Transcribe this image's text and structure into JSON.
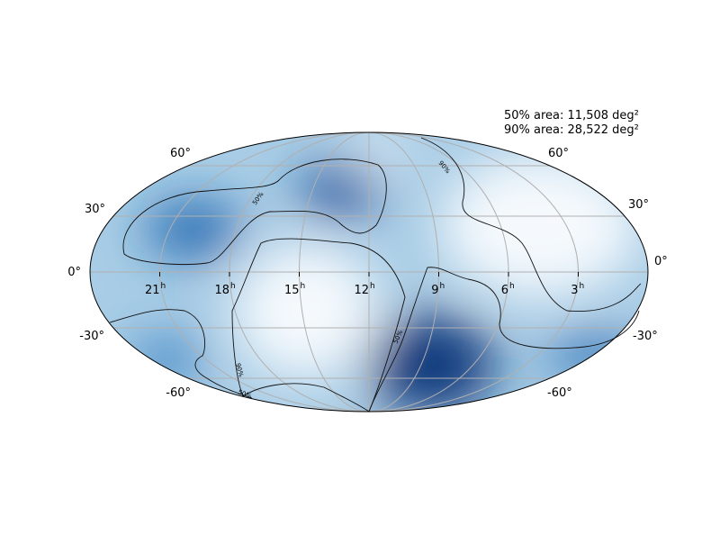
{
  "annotations": [
    "50% area: 11,508 deg²",
    "90% area: 28,522 deg²"
  ],
  "lat_labels_left": [
    "60°",
    "30°",
    "0°",
    "-30°",
    "-60°"
  ],
  "lat_labels_right": [
    "60°",
    "30°",
    "0°",
    "-30°",
    "-60°"
  ],
  "ra_labels": [
    {
      "hour": "21",
      "unit": "h"
    },
    {
      "hour": "18",
      "unit": "h"
    },
    {
      "hour": "15",
      "unit": "h"
    },
    {
      "hour": "12",
      "unit": "h"
    },
    {
      "hour": "9",
      "unit": "h"
    },
    {
      "hour": "6",
      "unit": "h"
    },
    {
      "hour": "3",
      "unit": "h"
    }
  ],
  "contour_labels": [
    "50%",
    "90%",
    "50%",
    "90%",
    "50%"
  ]
}
